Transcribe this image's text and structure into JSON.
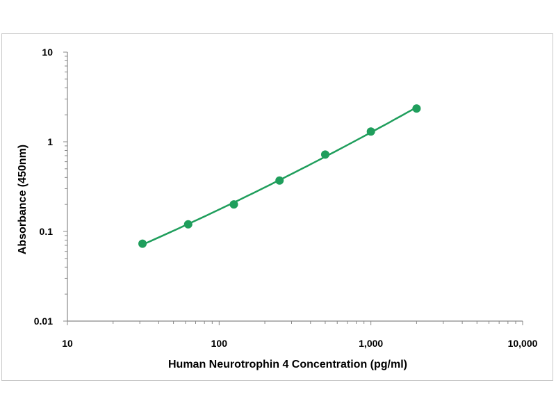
{
  "chart_data": {
    "type": "scatter",
    "title": "",
    "xlabel": "Human Neurotrophin 4 Concentration (pg/ml)",
    "ylabel": "Absorbance (450nm)",
    "x_scale": "log",
    "y_scale": "log",
    "xlim": [
      10,
      10000
    ],
    "ylim": [
      0.01,
      10
    ],
    "x_tick_labels": [
      {
        "value": 10,
        "label": "10"
      },
      {
        "value": 100,
        "label": "100"
      },
      {
        "value": 1000,
        "label": "1,000"
      },
      {
        "value": 10000,
        "label": "10,000"
      }
    ],
    "y_tick_labels": [
      {
        "value": 10,
        "label": "10"
      },
      {
        "value": 1,
        "label": "1"
      },
      {
        "value": 0.1,
        "label": "0.1"
      },
      {
        "value": 0.01,
        "label": "0.01"
      }
    ],
    "grid": false,
    "legend": "none",
    "series": [
      {
        "x": [
          31.25,
          62.5,
          125,
          250,
          500,
          1000,
          2000
        ],
        "y": [
          0.073,
          0.12,
          0.2,
          0.37,
          0.72,
          1.3,
          2.35
        ],
        "style": "markers + fitted curve",
        "color": "#1f9e5c"
      }
    ]
  }
}
